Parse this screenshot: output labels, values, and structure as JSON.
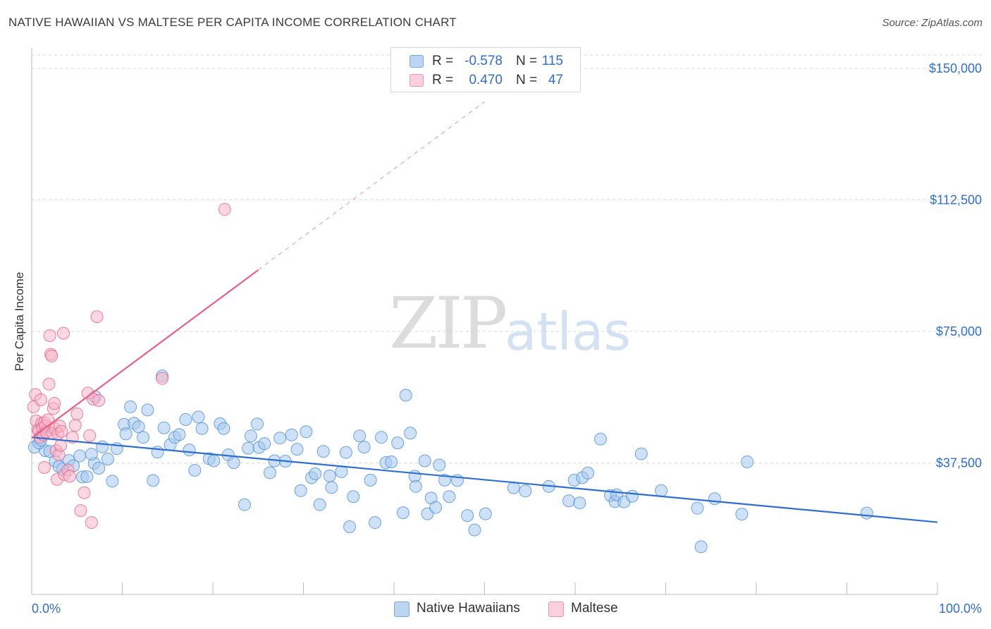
{
  "title": "NATIVE HAWAIIAN VS MALTESE PER CAPITA INCOME CORRELATION CHART",
  "source": "Source: ZipAtlas.com",
  "watermark": {
    "zip": "ZIP",
    "atlas": "atlas"
  },
  "legend_top": [
    {
      "r_label": "R =",
      "r_value": "-0.578",
      "n_label": "N =",
      "n_value": "115",
      "color": "#a8c8f0"
    },
    {
      "r_label": "R =",
      "r_value": "0.470",
      "n_label": "N =",
      "n_value": "47",
      "color": "#f5b6c8"
    }
  ],
  "legend_bottom": [
    {
      "label": "Native Hawaiians",
      "color": "#a8c8f0"
    },
    {
      "label": "Maltese",
      "color": "#f5b6c8"
    }
  ],
  "chart_data": {
    "type": "scatter",
    "title": "NATIVE HAWAIIAN VS MALTESE PER CAPITA INCOME CORRELATION CHART",
    "xlabel": "",
    "ylabel": "Per Capita Income",
    "xlim": [
      0,
      100
    ],
    "ylim": [
      0,
      155000
    ],
    "x_tick_labels": [
      "0.0%",
      "100.0%"
    ],
    "y_ticks": [
      37500,
      75000,
      112500,
      150000
    ],
    "y_tick_labels": [
      "$37,500",
      "$75,000",
      "$112,500",
      "$150,000"
    ],
    "grid": true,
    "legend_position": "bottom",
    "series": [
      {
        "name": "Native Hawaiians",
        "color": "#4a90d9",
        "fill": "#a8c8f0",
        "trend": {
          "x": [
            0,
            100
          ],
          "y": [
            44800,
            20600
          ]
        },
        "points": [
          [
            0.3,
            42000
          ],
          [
            1.5,
            41000
          ],
          [
            2.6,
            38000
          ],
          [
            3.4,
            35800
          ],
          [
            4.1,
            38200
          ],
          [
            4.6,
            36700
          ],
          [
            5.3,
            39500
          ],
          [
            5.6,
            33500
          ],
          [
            6.1,
            33600
          ],
          [
            6.9,
            37400
          ],
          [
            7.0,
            56400
          ],
          [
            7.4,
            36000
          ],
          [
            7.8,
            42100
          ],
          [
            8.4,
            38600
          ],
          [
            8.9,
            32300
          ],
          [
            9.4,
            41600
          ],
          [
            10.2,
            48500
          ],
          [
            10.4,
            45800
          ],
          [
            10.9,
            53500
          ],
          [
            11.3,
            48800
          ],
          [
            11.8,
            47800
          ],
          [
            12.3,
            44800
          ],
          [
            12.8,
            52600
          ],
          [
            13.4,
            32500
          ],
          [
            13.9,
            40600
          ],
          [
            14.4,
            62300
          ],
          [
            14.6,
            47500
          ],
          [
            15.3,
            42700
          ],
          [
            15.8,
            44800
          ],
          [
            16.3,
            45600
          ],
          [
            17.0,
            49900
          ],
          [
            17.4,
            41200
          ],
          [
            18.0,
            35400
          ],
          [
            18.4,
            50600
          ],
          [
            18.8,
            47300
          ],
          [
            19.6,
            38700
          ],
          [
            20.1,
            38100
          ],
          [
            20.8,
            48700
          ],
          [
            21.2,
            47300
          ],
          [
            21.7,
            39800
          ],
          [
            22.3,
            37600
          ],
          [
            23.5,
            25600
          ],
          [
            23.9,
            41700
          ],
          [
            24.2,
            45200
          ],
          [
            24.9,
            48600
          ],
          [
            25.1,
            41900
          ],
          [
            25.7,
            43000
          ],
          [
            26.3,
            34700
          ],
          [
            26.8,
            38100
          ],
          [
            27.4,
            44600
          ],
          [
            28.0,
            38000
          ],
          [
            28.7,
            45500
          ],
          [
            29.3,
            41400
          ],
          [
            29.7,
            29600
          ],
          [
            30.3,
            46400
          ],
          [
            30.9,
            33300
          ],
          [
            31.3,
            34400
          ],
          [
            31.8,
            25600
          ],
          [
            32.2,
            40800
          ],
          [
            32.9,
            33800
          ],
          [
            33.1,
            30500
          ],
          [
            34.2,
            35000
          ],
          [
            34.7,
            40500
          ],
          [
            35.1,
            19300
          ],
          [
            35.5,
            27900
          ],
          [
            36.2,
            45200
          ],
          [
            36.7,
            42000
          ],
          [
            37.4,
            32600
          ],
          [
            37.9,
            20500
          ],
          [
            38.6,
            44800
          ],
          [
            39.1,
            37600
          ],
          [
            39.7,
            37800
          ],
          [
            40.4,
            43200
          ],
          [
            41.0,
            23300
          ],
          [
            41.3,
            56800
          ],
          [
            41.8,
            46000
          ],
          [
            42.3,
            33700
          ],
          [
            42.4,
            30800
          ],
          [
            43.4,
            38100
          ],
          [
            43.7,
            23000
          ],
          [
            44.1,
            27500
          ],
          [
            44.6,
            24800
          ],
          [
            45.0,
            36900
          ],
          [
            45.6,
            32600
          ],
          [
            46.1,
            27900
          ],
          [
            47.0,
            32500
          ],
          [
            48.1,
            22500
          ],
          [
            48.9,
            18400
          ],
          [
            50.1,
            23000
          ],
          [
            53.2,
            30400
          ],
          [
            54.5,
            29500
          ],
          [
            57.1,
            30800
          ],
          [
            59.3,
            26700
          ],
          [
            59.9,
            32600
          ],
          [
            60.5,
            26100
          ],
          [
            60.8,
            33300
          ],
          [
            61.4,
            34600
          ],
          [
            62.8,
            44300
          ],
          [
            63.9,
            28200
          ],
          [
            64.4,
            26500
          ],
          [
            64.6,
            28400
          ],
          [
            65.4,
            26400
          ],
          [
            66.3,
            28000
          ],
          [
            67.3,
            40100
          ],
          [
            69.5,
            29600
          ],
          [
            73.5,
            24600
          ],
          [
            73.9,
            13600
          ],
          [
            75.4,
            27300
          ],
          [
            78.4,
            22900
          ],
          [
            79.0,
            37800
          ],
          [
            92.2,
            23200
          ],
          [
            0.8,
            43200
          ],
          [
            1.0,
            44000
          ],
          [
            2.0,
            40800
          ],
          [
            3.0,
            36500
          ],
          [
            6.6,
            40000
          ]
        ]
      },
      {
        "name": "Maltese",
        "color": "#e8608a",
        "fill": "#f5b6c8",
        "trend": {
          "x": [
            0,
            25
          ],
          "y": [
            44600,
            92500
          ],
          "dashed_to": {
            "x": 50,
            "y": 140500
          }
        },
        "points": [
          [
            0.2,
            53500
          ],
          [
            0.4,
            57000
          ],
          [
            0.5,
            49500
          ],
          [
            0.7,
            47000
          ],
          [
            0.8,
            46500
          ],
          [
            0.9,
            44800
          ],
          [
            1.0,
            55500
          ],
          [
            1.1,
            48800
          ],
          [
            1.2,
            47500
          ],
          [
            1.3,
            45500
          ],
          [
            1.4,
            49000
          ],
          [
            1.5,
            48000
          ],
          [
            1.6,
            46300
          ],
          [
            1.8,
            49800
          ],
          [
            1.9,
            60000
          ],
          [
            2.0,
            73800
          ],
          [
            2.1,
            68500
          ],
          [
            2.2,
            68000
          ],
          [
            2.3,
            46000
          ],
          [
            2.4,
            53000
          ],
          [
            2.5,
            54500
          ],
          [
            2.6,
            47200
          ],
          [
            2.7,
            41000
          ],
          [
            2.8,
            32800
          ],
          [
            2.9,
            45800
          ],
          [
            3.0,
            39800
          ],
          [
            3.1,
            48000
          ],
          [
            3.2,
            42500
          ],
          [
            3.3,
            46500
          ],
          [
            3.5,
            74500
          ],
          [
            3.6,
            34200
          ],
          [
            4.0,
            35500
          ],
          [
            4.2,
            33700
          ],
          [
            4.5,
            44800
          ],
          [
            4.8,
            48200
          ],
          [
            5.0,
            51500
          ],
          [
            5.4,
            23900
          ],
          [
            5.8,
            29000
          ],
          [
            6.2,
            57400
          ],
          [
            6.4,
            45300
          ],
          [
            6.6,
            20500
          ],
          [
            6.8,
            55700
          ],
          [
            7.2,
            79200
          ],
          [
            7.4,
            55300
          ],
          [
            14.4,
            61600
          ],
          [
            21.3,
            109800
          ],
          [
            1.4,
            36200
          ]
        ]
      }
    ]
  }
}
